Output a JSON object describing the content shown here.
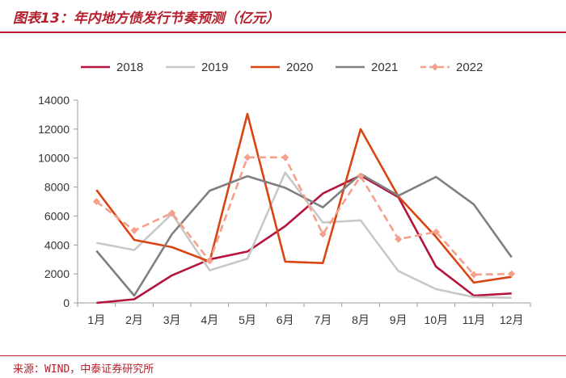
{
  "header": {
    "title": "图表13：年内地方债发行节奏预测（亿元）"
  },
  "footer": {
    "source": "来源：WIND，中泰证券研究所"
  },
  "chart_data": {
    "type": "line",
    "title": "年内地方债发行节奏预测（亿元）",
    "xlabel": "",
    "ylabel": "",
    "ylim": [
      0,
      14000
    ],
    "yticks": [
      0,
      2000,
      4000,
      6000,
      8000,
      10000,
      12000,
      14000
    ],
    "categories": [
      "1月",
      "2月",
      "3月",
      "4月",
      "5月",
      "6月",
      "7月",
      "8月",
      "9月",
      "10月",
      "11月",
      "12月"
    ],
    "legend_position": "top",
    "series": [
      {
        "name": "2018",
        "color": "#b5143c",
        "dashed": false,
        "markers": false,
        "values": [
          0,
          250,
          1900,
          3000,
          3550,
          5300,
          7550,
          8800,
          7300,
          2500,
          500,
          650
        ]
      },
      {
        "name": "2019",
        "color": "#c8c8c8",
        "dashed": false,
        "markers": false,
        "values": [
          4150,
          3650,
          6150,
          2250,
          3050,
          9000,
          5550,
          5700,
          2200,
          950,
          400,
          350
        ]
      },
      {
        "name": "2020",
        "color": "#d94512",
        "dashed": false,
        "markers": false,
        "values": [
          7800,
          4350,
          3850,
          2850,
          13050,
          2850,
          2750,
          12000,
          7350,
          4550,
          1400,
          1800
        ]
      },
      {
        "name": "2021",
        "color": "#7f7f7f",
        "dashed": false,
        "markers": false,
        "values": [
          3600,
          500,
          4750,
          7750,
          8750,
          7950,
          6600,
          8900,
          7400,
          8700,
          6800,
          3150
        ]
      },
      {
        "name": "2022",
        "color": "#f5a08c",
        "dashed": true,
        "markers": true,
        "values": [
          7000,
          5000,
          6200,
          2900,
          10050,
          10050,
          4750,
          8750,
          4400,
          4900,
          1950,
          2000
        ]
      }
    ]
  }
}
